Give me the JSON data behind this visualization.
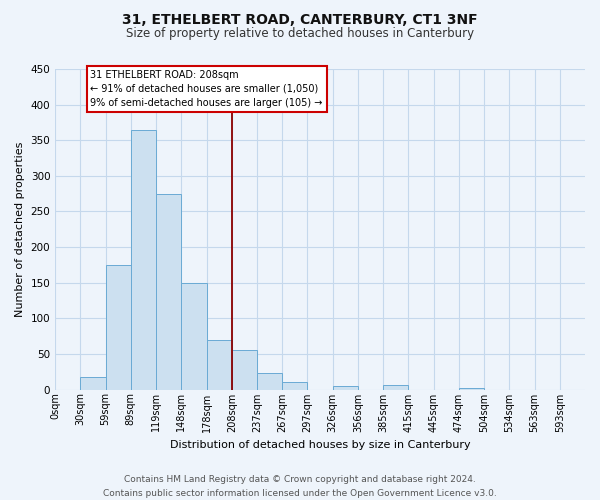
{
  "title": "31, ETHELBERT ROAD, CANTERBURY, CT1 3NF",
  "subtitle": "Size of property relative to detached houses in Canterbury",
  "xlabel": "Distribution of detached houses by size in Canterbury",
  "ylabel": "Number of detached properties",
  "footer_line1": "Contains HM Land Registry data © Crown copyright and database right 2024.",
  "footer_line2": "Contains public sector information licensed under the Open Government Licence v3.0.",
  "bin_labels": [
    "0sqm",
    "30sqm",
    "59sqm",
    "89sqm",
    "119sqm",
    "148sqm",
    "178sqm",
    "208sqm",
    "237sqm",
    "267sqm",
    "297sqm",
    "326sqm",
    "356sqm",
    "385sqm",
    "415sqm",
    "445sqm",
    "474sqm",
    "504sqm",
    "534sqm",
    "563sqm",
    "593sqm"
  ],
  "bar_heights": [
    0,
    18,
    175,
    365,
    275,
    150,
    70,
    55,
    23,
    10,
    0,
    5,
    0,
    7,
    0,
    0,
    2,
    0,
    0,
    0,
    0
  ],
  "bar_color": "#cce0f0",
  "bar_edge_color": "#6aaad4",
  "grid_color": "#c5d8ec",
  "background_color": "#eef4fb",
  "vline_color": "#8b0000",
  "annotation_title": "31 ETHELBERT ROAD: 208sqm",
  "annotation_line1": "← 91% of detached houses are smaller (1,050)",
  "annotation_line2": "9% of semi-detached houses are larger (105) →",
  "annotation_box_edge": "#cc0000",
  "ylim": [
    0,
    450
  ],
  "yticks": [
    0,
    50,
    100,
    150,
    200,
    250,
    300,
    350,
    400,
    450
  ],
  "vline_bin_index": 7,
  "n_bins": 21,
  "title_fontsize": 10,
  "subtitle_fontsize": 8.5,
  "ylabel_fontsize": 8,
  "xlabel_fontsize": 8,
  "tick_fontsize": 7,
  "footer_fontsize": 6.5
}
